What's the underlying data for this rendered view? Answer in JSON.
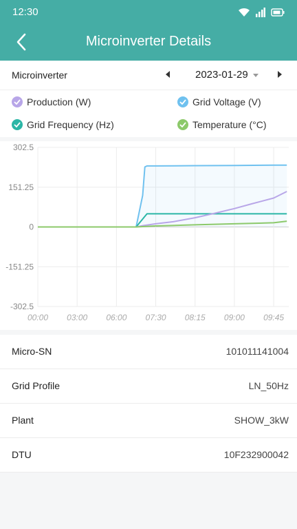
{
  "status": {
    "time": "12:30"
  },
  "header": {
    "title": "Microinverter Details"
  },
  "selector": {
    "label": "Microinverter",
    "date": "2023-01-29"
  },
  "legend": [
    {
      "label": "Production (W)",
      "color": "#b8a6e8"
    },
    {
      "label": "Grid Voltage (V)",
      "color": "#6fc1ef"
    },
    {
      "label": "Grid Frequency (Hz)",
      "color": "#2bb6a6"
    },
    {
      "label": "Temperature (°C)",
      "color": "#8cc96a"
    }
  ],
  "chart_data": {
    "type": "line",
    "y_ticks": [
      "302.5",
      "151.25",
      "0",
      "-151.25",
      "-302.5"
    ],
    "ylim": [
      -302.5,
      302.5
    ],
    "x_ticks": [
      "00:00",
      "03:00",
      "06:00",
      "07:30",
      "08:15",
      "09:00",
      "09:45"
    ],
    "grid": true,
    "series": [
      {
        "name": "Grid Voltage (V)",
        "color": "#6fc1ef",
        "x": [
          "00:00",
          "06:45",
          "07:00",
          "07:05",
          "07:10",
          "07:30",
          "08:15",
          "09:00",
          "09:45",
          "10:00"
        ],
        "y": [
          0,
          0,
          120,
          228,
          232,
          232,
          233,
          234,
          235,
          235
        ]
      },
      {
        "name": "Grid Frequency (Hz)",
        "color": "#2bb6a6",
        "x": [
          "00:00",
          "06:45",
          "07:00",
          "07:10",
          "07:30",
          "08:15",
          "09:00",
          "09:45",
          "10:00"
        ],
        "y": [
          0,
          0,
          30,
          50,
          50,
          50,
          50,
          50,
          50
        ]
      },
      {
        "name": "Production (W)",
        "color": "#b8a6e8",
        "x": [
          "00:00",
          "06:45",
          "07:00",
          "07:30",
          "07:50",
          "08:15",
          "08:35",
          "09:00",
          "09:20",
          "09:45",
          "10:00"
        ],
        "y": [
          0,
          0,
          5,
          12,
          20,
          35,
          50,
          70,
          88,
          110,
          135
        ]
      },
      {
        "name": "Temperature (°C)",
        "color": "#8cc96a",
        "x": [
          "00:00",
          "06:45",
          "07:30",
          "08:15",
          "09:00",
          "09:45",
          "10:00"
        ],
        "y": [
          0,
          0,
          4,
          8,
          12,
          16,
          22
        ]
      }
    ]
  },
  "info": [
    {
      "key": "Micro-SN",
      "value": "101011141004"
    },
    {
      "key": "Grid Profile",
      "value": "LN_50Hz"
    },
    {
      "key": "Plant",
      "value": "SHOW_3kW"
    },
    {
      "key": "DTU",
      "value": "10F232900042"
    }
  ]
}
